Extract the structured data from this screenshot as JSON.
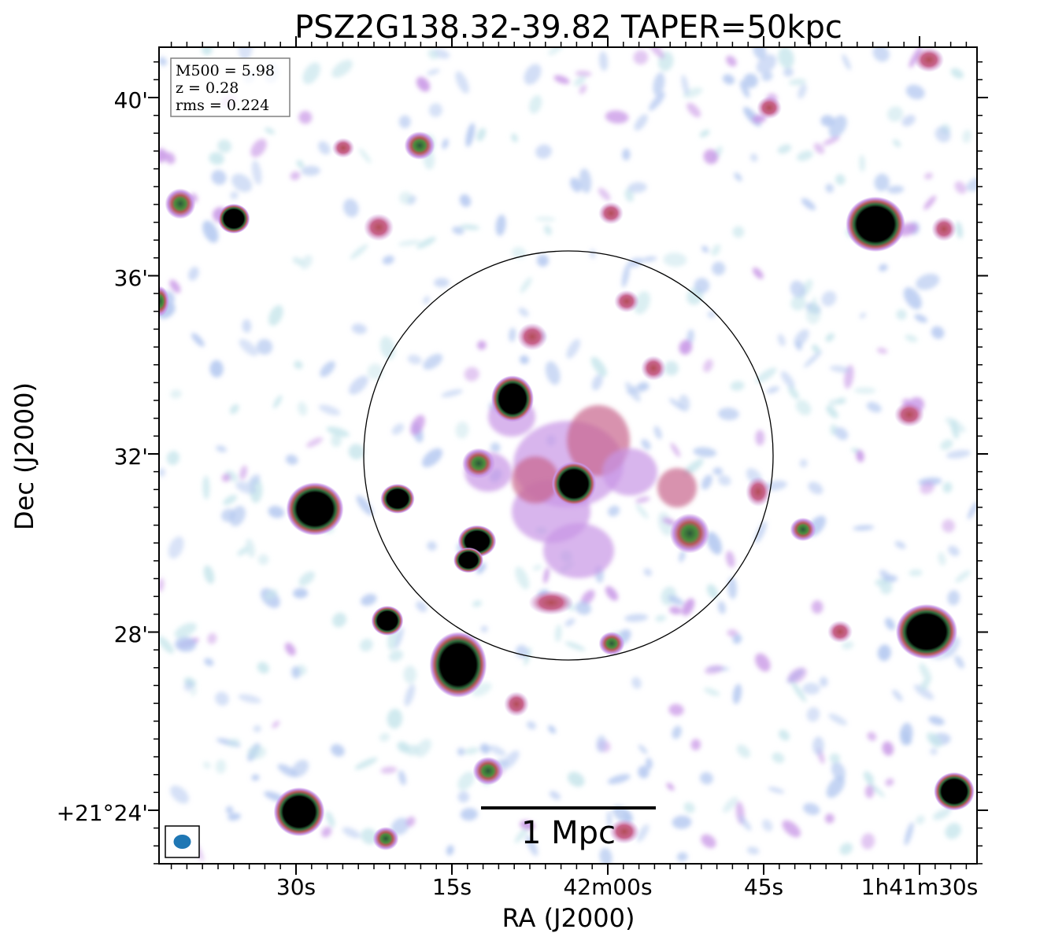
{
  "figure": {
    "title": "PSZ2G138.32-39.82 TAPER=50kpc",
    "xlabel": "RA (J2000)",
    "ylabel": "Dec (J2000)",
    "x_ticks": [
      "30s",
      "15s",
      "42m00s",
      "45s",
      "1h41m30s"
    ],
    "y_ticks": [
      "40'",
      "36'",
      "32'",
      "28'",
      "+21°24'"
    ],
    "info_box": {
      "lines": [
        "M500 = 5.98",
        "z = 0.28",
        "rms = 0.224"
      ]
    },
    "scale_bar": {
      "label": "1 Mpc"
    },
    "beam_color": "#1f77b4",
    "colormap": [
      "#ffffff",
      "#c8e6ec",
      "#b4c8f0",
      "#c896e6",
      "#c8648c",
      "#4a8c3c",
      "#000000"
    ]
  }
}
